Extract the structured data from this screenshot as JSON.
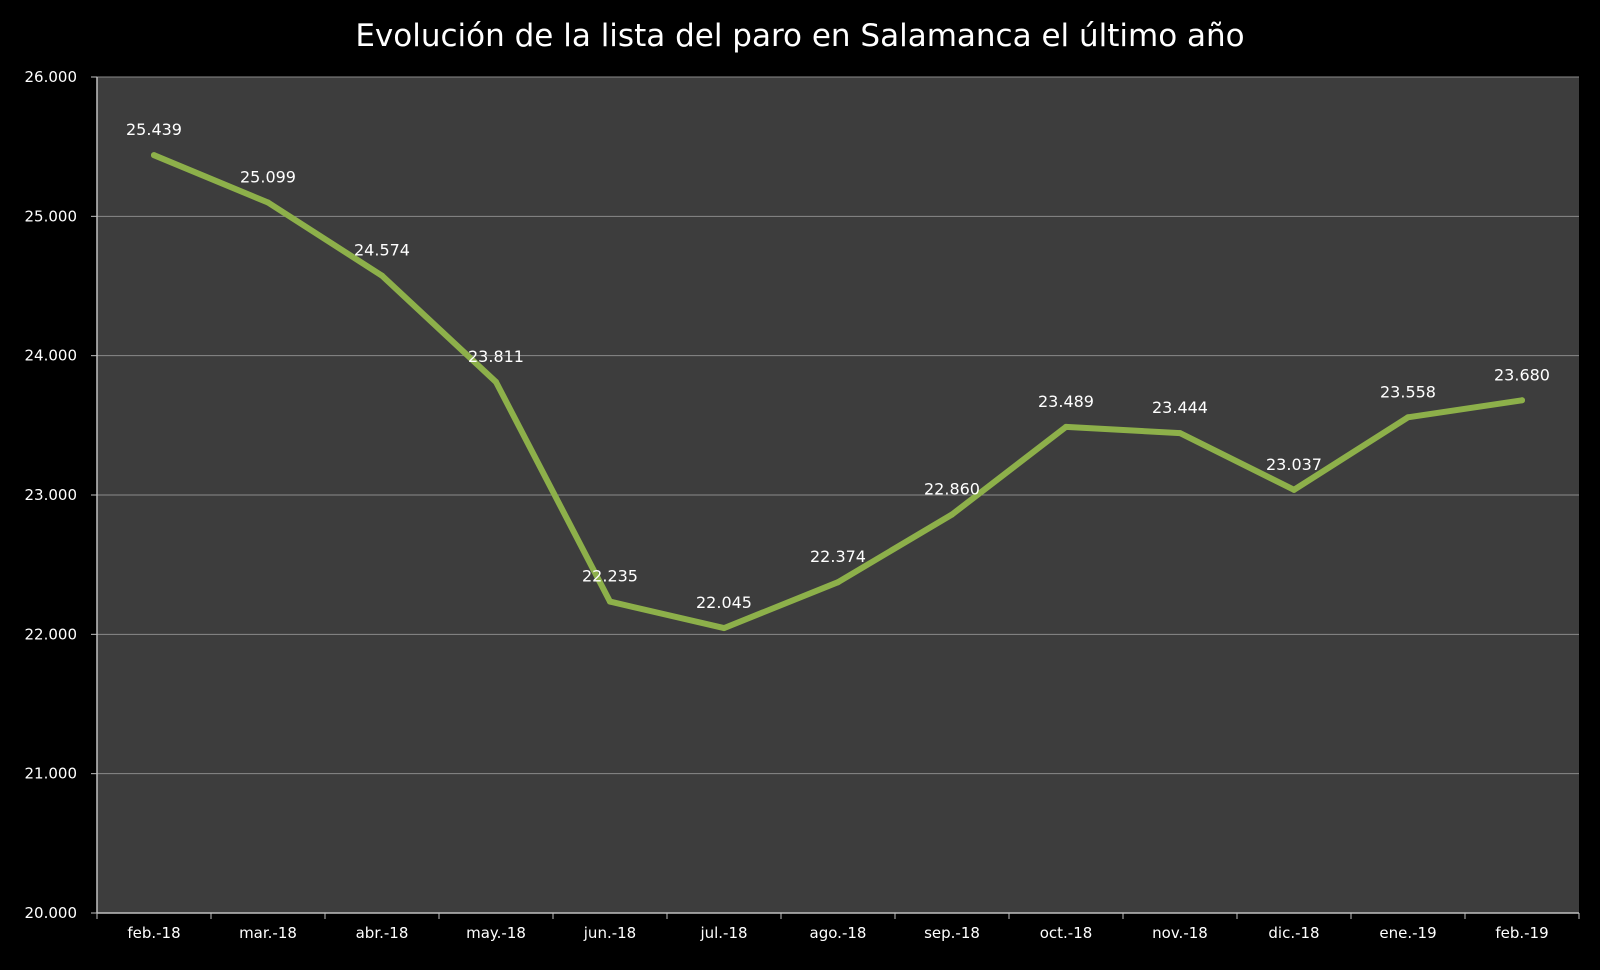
{
  "chart_data": {
    "type": "line",
    "title": "Evolución de la lista del paro en Salamanca el último año",
    "xlabel": "",
    "ylabel": "",
    "categories": [
      "feb.-18",
      "mar.-18",
      "abr.-18",
      "may.-18",
      "jun.-18",
      "jul.-18",
      "ago.-18",
      "sep.-18",
      "oct.-18",
      "nov.-18",
      "dic.-18",
      "ene.-19",
      "feb.-19"
    ],
    "series": [
      {
        "values": [
          25439,
          25099,
          24574,
          23811,
          22235,
          22045,
          22374,
          22860,
          23489,
          23444,
          23037,
          23558,
          23680
        ],
        "data_labels": [
          "25.439",
          "25.099",
          "24.574",
          "23.811",
          "22.235",
          "22.045",
          "22.374",
          "22.860",
          "23.489",
          "23.444",
          "23.037",
          "23.558",
          "23.680"
        ]
      }
    ],
    "ylim": [
      20000,
      26000
    ],
    "yticks": [
      20000,
      21000,
      22000,
      23000,
      24000,
      25000,
      26000
    ],
    "ytick_labels": [
      "20.000",
      "21.000",
      "22.000",
      "23.000",
      "24.000",
      "25.000",
      "26.000"
    ],
    "grid": true,
    "legend": "none",
    "colors": {
      "background": "#000000",
      "plot_area": "#3d3d3d",
      "gridline": "#8a8a8a",
      "axis": "#bfbfbf",
      "line": "#8db04a",
      "text": "#ffffff"
    }
  }
}
